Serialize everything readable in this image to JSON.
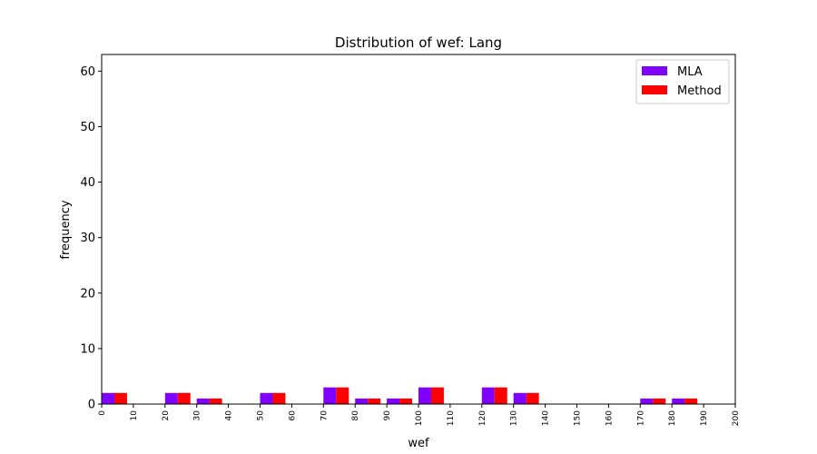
{
  "chart_data": {
    "type": "bar",
    "title": "Distribution of wef: Lang",
    "xlabel": "wef",
    "ylabel": "frequency",
    "xlim": [
      0,
      200
    ],
    "ylim": [
      0,
      63
    ],
    "xticks": [
      0,
      10,
      20,
      30,
      40,
      50,
      60,
      70,
      80,
      90,
      100,
      110,
      120,
      130,
      140,
      150,
      160,
      170,
      180,
      190,
      200
    ],
    "yticks": [
      0,
      10,
      20,
      30,
      40,
      50,
      60
    ],
    "bin_edges": [
      0,
      10,
      20,
      30,
      40,
      50,
      60,
      70,
      80,
      90,
      100,
      110,
      120,
      130,
      140,
      150,
      160,
      170,
      180,
      190,
      200
    ],
    "series": [
      {
        "name": "MLA",
        "color": "#7f00ff",
        "values": [
          2,
          0,
          2,
          1,
          0,
          2,
          0,
          3,
          1,
          1,
          3,
          0,
          3,
          2,
          0,
          0,
          0,
          1,
          1,
          0
        ]
      },
      {
        "name": "Method",
        "color": "#ff0000",
        "values": [
          2,
          0,
          2,
          1,
          0,
          2,
          0,
          3,
          1,
          1,
          3,
          0,
          3,
          2,
          0,
          0,
          0,
          1,
          1,
          0
        ]
      }
    ],
    "legend_position": "top-right",
    "grid": false
  }
}
